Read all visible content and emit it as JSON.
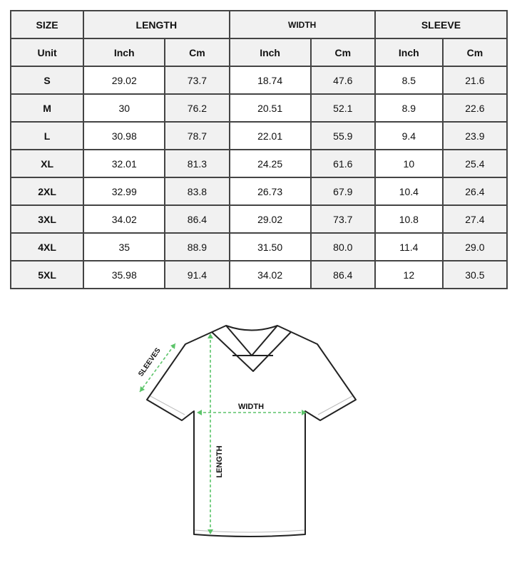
{
  "header": {
    "size": "SIZE",
    "length": "LENGTH",
    "width": "WIDTH",
    "sleeve": "SLEEVE"
  },
  "units": {
    "label": "Unit",
    "inch": "Inch",
    "cm": "Cm"
  },
  "rows": [
    {
      "size": "S",
      "values": [
        "29.02",
        "73.7",
        "18.74",
        "47.6",
        "8.5",
        "21.6"
      ]
    },
    {
      "size": "M",
      "values": [
        "30",
        "76.2",
        "20.51",
        "52.1",
        "8.9",
        "22.6"
      ]
    },
    {
      "size": "L",
      "values": [
        "30.98",
        "78.7",
        "22.01",
        "55.9",
        "9.4",
        "23.9"
      ]
    },
    {
      "size": "XL",
      "values": [
        "32.01",
        "81.3",
        "24.25",
        "61.6",
        "10",
        "25.4"
      ]
    },
    {
      "size": "2XL",
      "values": [
        "32.99",
        "83.8",
        "26.73",
        "67.9",
        "10.4",
        "26.4"
      ]
    },
    {
      "size": "3XL",
      "values": [
        "34.02",
        "86.4",
        "29.02",
        "73.7",
        "10.8",
        "27.4"
      ]
    },
    {
      "size": "4XL",
      "values": [
        "35",
        "88.9",
        "31.50",
        "80.0",
        "11.4",
        "29.0"
      ]
    },
    {
      "size": "5XL",
      "values": [
        "35.98",
        "91.4",
        "34.02",
        "86.4",
        "12",
        "30.5"
      ]
    }
  ],
  "diagram": {
    "sleeves_label": "SLEEVES",
    "width_label": "WIDTH",
    "length_label": "LENGTH",
    "arrow_color": "#5cc46a",
    "outline_color": "#222222"
  }
}
